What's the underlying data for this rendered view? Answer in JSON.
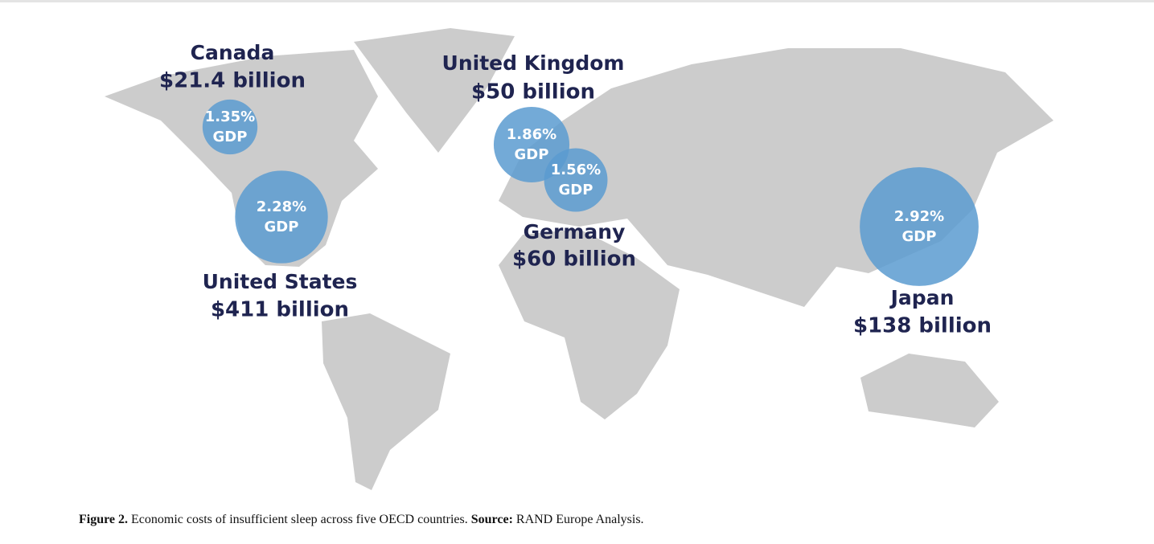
{
  "markers": [
    {
      "country": "Canada",
      "cost": "$21.4 billion",
      "share": 1.35,
      "share_label": "1.35%",
      "unit": "GDP"
    },
    {
      "country": "United States",
      "cost": "$411 billion",
      "share": 2.28,
      "share_label": "2.28%",
      "unit": "GDP"
    },
    {
      "country": "United Kingdom",
      "cost": "$50 billion",
      "share": 1.86,
      "share_label": "1.86%",
      "unit": "GDP"
    },
    {
      "country": "Germany",
      "cost": "$60 billion",
      "share": 1.56,
      "share_label": "1.56%",
      "unit": "GDP"
    },
    {
      "country": "Japan",
      "cost": "$138 billion",
      "share": 2.92,
      "share_label": "2.92%",
      "unit": "GDP"
    }
  ],
  "caption": {
    "figure": "Figure 2.",
    "text": "Economic costs of insufficient sleep across five OECD countries.",
    "source_label": "Source:",
    "source": "RAND Europe Analysis."
  }
}
